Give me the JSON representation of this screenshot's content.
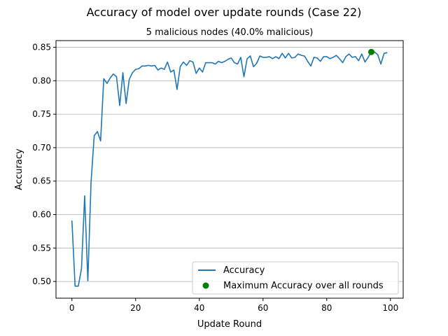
{
  "chart_data": {
    "type": "line",
    "title": "Accuracy of model over update rounds (Case 22)",
    "subtitle": "5 malicious nodes (40.0% malicious)",
    "xlabel": "Update Round",
    "ylabel": "Accuracy",
    "xlim": [
      -5,
      104
    ],
    "ylim": [
      0.475,
      0.86
    ],
    "xticks": [
      0,
      20,
      40,
      60,
      80,
      100
    ],
    "yticks": [
      0.5,
      0.55,
      0.6,
      0.65,
      0.7,
      0.75,
      0.8,
      0.85
    ],
    "xtick_labels": [
      "0",
      "20",
      "40",
      "60",
      "80",
      "100"
    ],
    "ytick_labels": [
      "0.50",
      "0.55",
      "0.60",
      "0.65",
      "0.70",
      "0.75",
      "0.80",
      "0.85"
    ],
    "grid": "horizontal",
    "legend_position": "lower-right",
    "series": [
      {
        "name": "Accuracy",
        "color": "#1f77b4",
        "x": [
          0,
          1,
          2,
          3,
          4,
          5,
          6,
          7,
          8,
          9,
          10,
          11,
          12,
          13,
          14,
          15,
          16,
          17,
          18,
          19,
          20,
          21,
          22,
          23,
          24,
          25,
          26,
          27,
          28,
          29,
          30,
          31,
          32,
          33,
          34,
          35,
          36,
          37,
          38,
          39,
          40,
          41,
          42,
          43,
          44,
          45,
          46,
          47,
          48,
          49,
          50,
          51,
          52,
          53,
          54,
          55,
          56,
          57,
          58,
          59,
          60,
          61,
          62,
          63,
          64,
          65,
          66,
          67,
          68,
          69,
          70,
          71,
          72,
          73,
          74,
          75,
          76,
          77,
          78,
          79,
          80,
          81,
          82,
          83,
          84,
          85,
          86,
          87,
          88,
          89,
          90,
          91,
          92,
          93,
          94,
          95,
          96,
          97,
          98,
          99
        ],
        "y": [
          0.591,
          0.493,
          0.493,
          0.519,
          0.628,
          0.501,
          0.648,
          0.718,
          0.724,
          0.71,
          0.803,
          0.796,
          0.804,
          0.81,
          0.806,
          0.763,
          0.812,
          0.766,
          0.802,
          0.812,
          0.817,
          0.818,
          0.822,
          0.822,
          0.823,
          0.822,
          0.823,
          0.816,
          0.819,
          0.817,
          0.828,
          0.813,
          0.816,
          0.787,
          0.821,
          0.828,
          0.823,
          0.83,
          0.828,
          0.811,
          0.819,
          0.813,
          0.827,
          0.827,
          0.827,
          0.825,
          0.829,
          0.827,
          0.829,
          0.832,
          0.834,
          0.827,
          0.825,
          0.835,
          0.806,
          0.833,
          0.837,
          0.821,
          0.826,
          0.837,
          0.835,
          0.835,
          0.836,
          0.833,
          0.836,
          0.833,
          0.841,
          0.834,
          0.841,
          0.834,
          0.835,
          0.84,
          0.838,
          0.837,
          0.829,
          0.822,
          0.835,
          0.834,
          0.829,
          0.836,
          0.836,
          0.833,
          0.835,
          0.838,
          0.833,
          0.827,
          0.836,
          0.84,
          0.835,
          0.836,
          0.83,
          0.84,
          0.828,
          0.835,
          0.843,
          0.843,
          0.839,
          0.825,
          0.841,
          0.842
        ]
      }
    ],
    "markers": [
      {
        "name": "Maximum Accuracy over all rounds",
        "color": "#008000",
        "x": 94,
        "y": 0.843
      }
    ]
  }
}
